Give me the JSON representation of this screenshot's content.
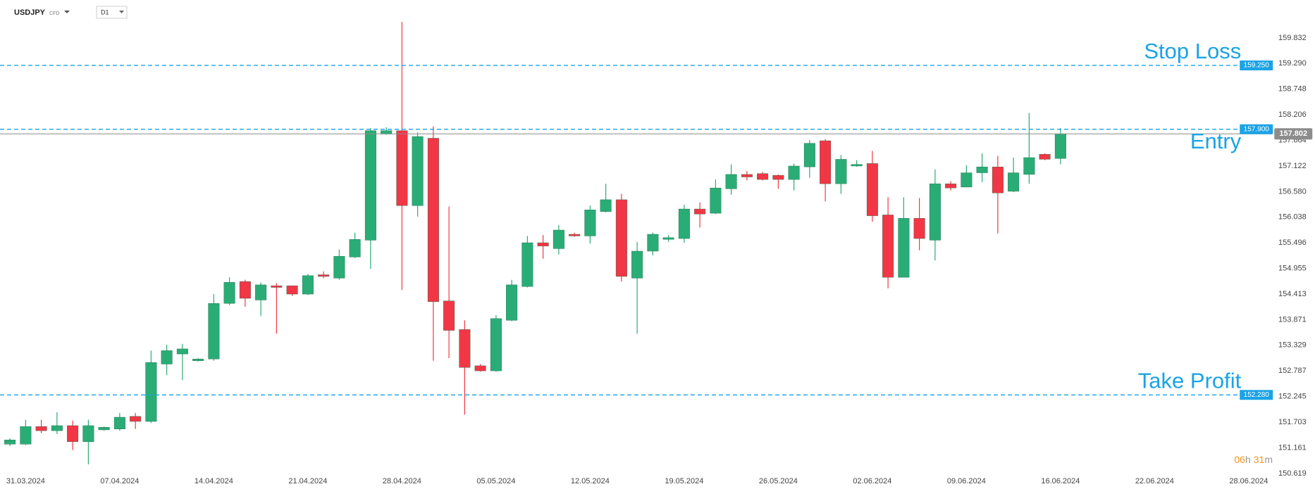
{
  "header": {
    "symbol": "USDJPY",
    "instrument_type": "CFD",
    "timeframe": "D1"
  },
  "countdown": [
    "06",
    "h",
    "31",
    "m"
  ],
  "chart_data": {
    "type": "candlestick",
    "up_color": "#2aac76",
    "down_color": "#f23645",
    "categories": [
      null,
      "31.03.2024",
      null,
      null,
      null,
      null,
      null,
      "07.04.2024",
      null,
      null,
      null,
      null,
      null,
      "14.04.2024",
      null,
      null,
      null,
      null,
      null,
      "21.04.2024",
      null,
      null,
      null,
      null,
      null,
      "28.04.2024",
      null,
      null,
      null,
      null,
      null,
      "05.05.2024",
      null,
      null,
      null,
      null,
      null,
      "12.05.2024",
      null,
      null,
      null,
      null,
      null,
      "19.05.2024",
      null,
      null,
      null,
      null,
      null,
      "26.05.2024",
      null,
      null,
      null,
      null,
      null,
      "02.06.2024",
      null,
      null,
      null,
      null,
      null,
      "09.06.2024",
      null,
      null,
      null,
      null,
      null,
      "16.06.2024",
      null,
      null,
      null,
      null,
      null,
      "22.06.2024",
      null,
      null,
      null,
      null,
      null,
      "28.06.2024",
      null
    ],
    "open": [
      151.238,
      151.238,
      151.612,
      151.523,
      151.63,
      151.291,
      151.541,
      151.559,
      151.826,
      151.719,
      152.932,
      153.146,
      153.003,
      153.039,
      154.216,
      154.679,
      154.287,
      154.59,
      154.59,
      154.412,
      154.822,
      154.75,
      155.196,
      155.553,
      157.799,
      157.871,
      156.284,
      157.71,
      154.269,
      153.663,
      152.896,
      152.789,
      153.859,
      154.572,
      155.499,
      155.374,
      155.678,
      155.642,
      156.159,
      156.409,
      154.75,
      155.321,
      155.571,
      155.588,
      156.213,
      156.123,
      156.64,
      156.944,
      156.961,
      156.926,
      156.837,
      157.104,
      157.657,
      156.747,
      157.122,
      157.175,
      156.088,
      154.768,
      156.016,
      155.553,
      156.747,
      156.676,
      156.979,
      157.104,
      156.587,
      156.944,
      157.371,
      157.282,
      null,
      null,
      null,
      null,
      null,
      null,
      null,
      null,
      null,
      null,
      null,
      null,
      null
    ],
    "high": [
      151.363,
      151.755,
      151.755,
      151.915,
      151.737,
      151.755,
      151.612,
      151.898,
      151.898,
      153.217,
      153.342,
      153.36,
      153.057,
      154.412,
      154.768,
      154.715,
      154.661,
      154.643,
      154.59,
      154.84,
      154.893,
      155.357,
      155.713,
      157.924,
      157.942,
      160.171,
      157.835,
      157.96,
      156.266,
      153.859,
      152.932,
      153.966,
      154.715,
      155.642,
      155.66,
      155.874,
      155.713,
      156.284,
      156.747,
      156.533,
      155.517,
      155.713,
      155.66,
      156.302,
      156.355,
      156.837,
      157.157,
      157.015,
      156.997,
      156.944,
      157.175,
      157.675,
      157.692,
      157.354,
      157.247,
      157.443,
      156.462,
      156.462,
      156.444,
      157.051,
      156.801,
      157.14,
      157.389,
      157.336,
      157.3,
      158.245,
      157.389,
      157.924,
      null,
      null,
      null,
      null,
      null,
      null,
      null,
      null,
      null,
      null,
      null,
      null,
      null
    ],
    "low": [
      151.202,
      151.22,
      151.47,
      151.452,
      151.113,
      150.81,
      151.523,
      151.523,
      151.559,
      151.684,
      152.7,
      152.593,
      152.985,
      153.003,
      154.18,
      154.144,
      153.948,
      153.574,
      154.376,
      154.394,
      154.75,
      154.715,
      155.178,
      154.947,
      157.782,
      154.501,
      156.052,
      153.003,
      153.057,
      151.862,
      152.771,
      152.771,
      153.841,
      154.554,
      155.161,
      155.25,
      155.624,
      155.481,
      156.141,
      154.679,
      153.574,
      155.232,
      155.517,
      155.499,
      155.82,
      156.106,
      156.516,
      156.819,
      156.819,
      156.64,
      156.605,
      156.872,
      156.373,
      156.533,
      157.104,
      155.945,
      154.536,
      154.768,
      155.339,
      155.125,
      156.605,
      156.676,
      156.783,
      155.695,
      156.569,
      156.747,
      157.247,
      157.157,
      null,
      null,
      null,
      null,
      null,
      null,
      null,
      null,
      null,
      null,
      null,
      null,
      null
    ],
    "close": [
      151.327,
      151.612,
      151.523,
      151.63,
      151.291,
      151.63,
      151.595,
      151.808,
      151.719,
      152.967,
      153.217,
      153.253,
      153.039,
      154.216,
      154.661,
      154.323,
      154.608,
      154.554,
      154.412,
      154.804,
      154.786,
      155.214,
      155.571,
      157.871,
      157.871,
      156.284,
      157.746,
      154.251,
      153.645,
      152.86,
      152.789,
      153.895,
      154.608,
      155.499,
      155.428,
      155.767,
      155.642,
      156.195,
      156.409,
      154.786,
      155.321,
      155.678,
      155.606,
      156.213,
      156.106,
      156.658,
      156.944,
      156.89,
      156.837,
      156.837,
      157.122,
      157.603,
      156.747,
      157.264,
      157.157,
      156.07,
      154.768,
      156.016,
      155.588,
      156.747,
      156.658,
      156.979,
      157.104,
      156.551,
      156.979,
      157.3,
      157.264,
      157.802,
      null,
      null,
      null,
      null,
      null,
      null,
      null,
      null,
      null,
      null,
      null,
      null,
      null
    ],
    "ylim": [
      150.632,
      160.634
    ],
    "yticks": [
      159.832,
      {
        "value": 159.29,
        "label": "159.290"
      },
      158.748,
      158.206,
      157.664,
      157.122,
      {
        "value": 156.58,
        "label": "156.580"
      },
      156.038,
      155.496,
      154.955,
      154.413,
      153.871,
      153.329,
      152.787,
      152.245,
      151.703,
      151.161,
      150.619
    ],
    "grid": false,
    "current_price_color": "#8c8c8c",
    "levels": [
      {
        "name": "Stop Loss",
        "value": 159.25,
        "value_label": "159.250",
        "color": "#1aa3e6",
        "label_side": "above"
      },
      {
        "name": "Entry",
        "value": 157.9,
        "value_label": "157.900",
        "color": "#1aa3e6",
        "label_side": "below"
      },
      {
        "name": "Take Profit",
        "value": 152.28,
        "value_label": "152.280",
        "color": "#1aa3e6",
        "label_side": "above"
      }
    ]
  }
}
